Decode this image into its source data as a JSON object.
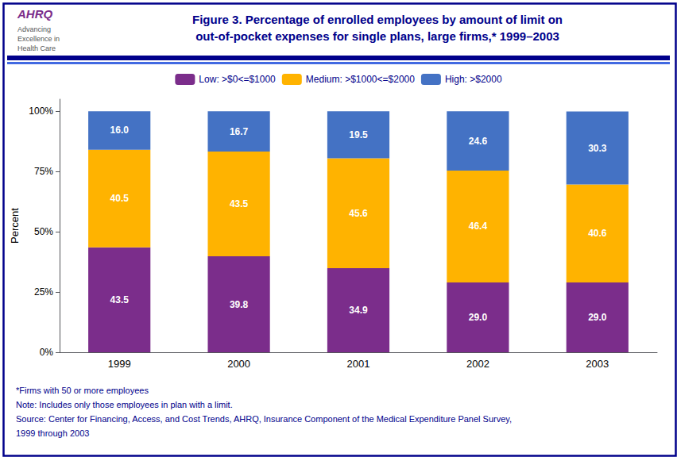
{
  "chart_data": {
    "type": "bar",
    "title": "Figure 3. Percentage of enrolled employees by amount of limit on",
    "subtitle": "out-of-pocket expenses for single plans, large firms,* 1999–2003",
    "y_label": "Percent",
    "categories": [
      "1999",
      "2000",
      "2001",
      "2002",
      "2003"
    ],
    "series": [
      {
        "name": "Low: >$0<=$1000",
        "color": "#7B2D8B",
        "values": [
          43.5,
          39.8,
          34.9,
          29.0,
          29.0
        ],
        "value_labels": [
          "43.5",
          "39.8",
          "34.9",
          "29.0",
          "29.0"
        ]
      },
      {
        "name": "Medium: >$1000<=$2000",
        "color": "#FFB300",
        "values": [
          40.5,
          43.5,
          45.6,
          46.4,
          40.6
        ],
        "value_labels": [
          "40.5",
          "43.5",
          "45.6",
          "46.4",
          "40.6"
        ]
      },
      {
        "name": "High: >$2000",
        "color": "#4472C4",
        "values": [
          16.0,
          16.7,
          19.5,
          24.6,
          30.3
        ],
        "value_labels": [
          "16.0",
          "16.7",
          "19.5",
          "24.6",
          "30.3"
        ]
      }
    ],
    "stacked": true,
    "data_labels": true,
    "ylim": [
      0,
      105
    ],
    "yticks": [
      {
        "value": 0,
        "label": "0%"
      },
      {
        "value": 25,
        "label": "25%"
      },
      {
        "value": 50,
        "label": "50%"
      },
      {
        "value": 75,
        "label": "75%"
      },
      {
        "value": 100,
        "label": "100%"
      }
    ],
    "grid": false,
    "legend": "top",
    "annotations": [
      "AHRQ",
      "Advancing",
      "Excellence in",
      "Health Care",
      "*Firms with 50 or more employees",
      "Note: Includes only those employees in plan with a limit.",
      "Source: Center for Financing, Access, and Cost Trends, AHRQ, Insurance Component of the Medical Expenditure Panel Survey,",
      "1999 through 2003"
    ]
  }
}
